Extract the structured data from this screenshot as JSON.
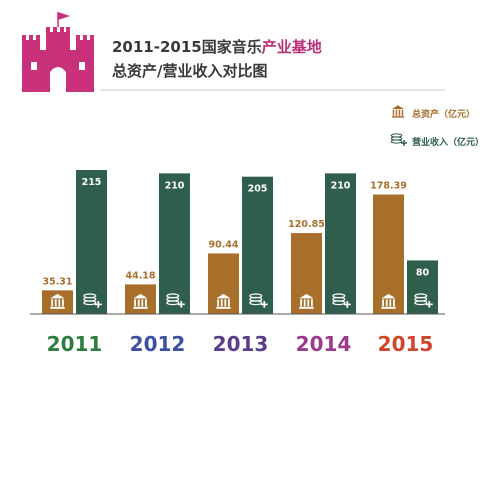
{
  "header": {
    "title_line1_a": "2011-2015国家音乐",
    "title_line1_b": "产业基地",
    "title_line2": "总资产/营业收入对比图"
  },
  "legend": {
    "assets": "总资产（亿元）",
    "revenue": "营业收入（亿元）"
  },
  "colors": {
    "assets": "#a86f2b",
    "revenue": "#2f5e4c",
    "castle": "#c9317b",
    "title_accent": "#b8307a",
    "title_dark": "#3a3a3a",
    "axis": "#555555",
    "year_colors": [
      "#2d7d3f",
      "#3d4fa3",
      "#5b3d8a",
      "#9a3a8d",
      "#d2432c"
    ]
  },
  "icons": {
    "assets": "bank-icon",
    "revenue": "coins-plus-icon",
    "header": "castle-icon"
  },
  "chart_data": {
    "type": "bar",
    "title": "2011-2015国家音乐产业基地总资产/营业收入对比图",
    "categories": [
      "2011",
      "2012",
      "2013",
      "2014",
      "2015"
    ],
    "series": [
      {
        "name": "总资产（亿元）",
        "values": [
          35.31,
          44.18,
          90.44,
          120.85,
          178.39
        ],
        "labels": [
          "35.31",
          "44.18",
          "90.44",
          "120.85",
          "178.39"
        ]
      },
      {
        "name": "营业收入（亿元）",
        "values": [
          215,
          210,
          205,
          210,
          80
        ],
        "labels": [
          "215",
          "210",
          "205",
          "210",
          "80"
        ]
      }
    ],
    "ylim": [
      0,
      225
    ],
    "grid": false,
    "legend_position": "top-right"
  }
}
